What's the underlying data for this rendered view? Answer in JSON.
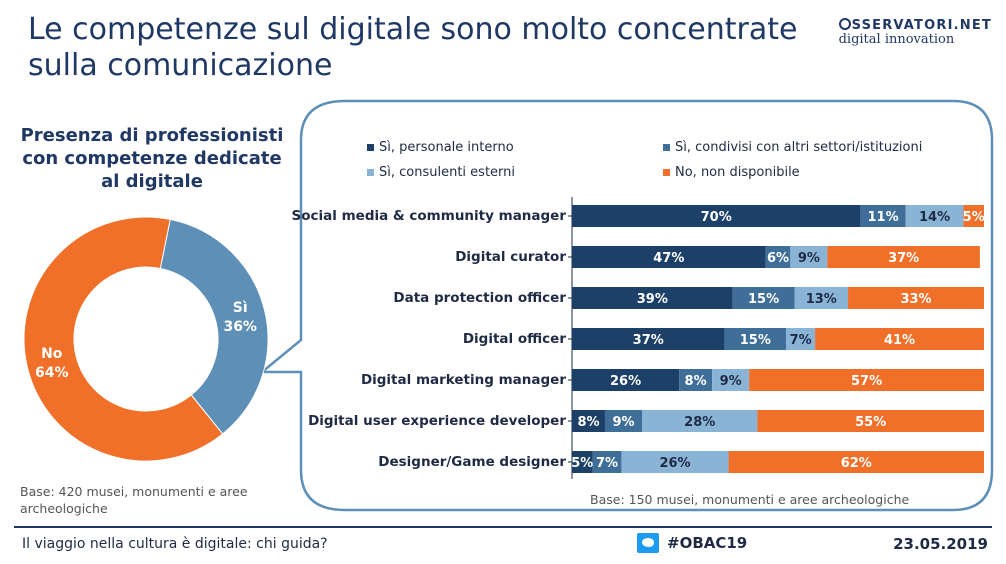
{
  "title": "Le competenze sul digitale sono molto concentrate sulla comunicazione",
  "logo": {
    "line1": "SSERVATORI.NET",
    "line2": "digital innovation"
  },
  "donut": {
    "title": "Presenza di professionisti con competenze dedicate al digitale",
    "base": "Base: 420 musei, monumenti e aree archeologiche",
    "colors": {
      "no": "#f07029",
      "si": "#5e8fb7"
    }
  },
  "bars": {
    "base": "Base: 150 musei, monumenti e aree archeologiche",
    "legend": [
      {
        "label": "Sì, personale interno",
        "color": "#1d4068"
      },
      {
        "label": "Sì, condivisi con altri settori/istituzioni",
        "color": "#3f6f99"
      },
      {
        "label": "Sì, consulenti esterni",
        "color": "#8ab4d6"
      },
      {
        "label": "No, non disponibile",
        "color": "#f07029"
      }
    ]
  },
  "chart_data": [
    {
      "type": "pie",
      "title": "Presenza di professionisti con competenze dedicate al digitale",
      "donut": true,
      "slices": [
        {
          "label": "No",
          "value": 64,
          "display": "64%"
        },
        {
          "label": "Sì",
          "value": 36,
          "display": "36%"
        }
      ]
    },
    {
      "type": "bar",
      "orientation": "horizontal",
      "stacked": true,
      "xlim": [
        0,
        100
      ],
      "categories": [
        "Social media & community manager",
        "Digital curator",
        "Data protection officer",
        "Digital officer",
        "Digital marketing manager",
        "Digital user experience developer",
        "Designer/Game designer"
      ],
      "series": [
        {
          "name": "Sì, personale interno",
          "values": [
            70,
            47,
            39,
            37,
            26,
            8,
            5
          ]
        },
        {
          "name": "Sì, condivisi con altri settori/istituzioni",
          "values": [
            11,
            6,
            15,
            15,
            8,
            9,
            7
          ]
        },
        {
          "name": "Sì, consulenti esterni",
          "values": [
            14,
            9,
            13,
            7,
            9,
            28,
            26
          ]
        },
        {
          "name": "No, non disponibile",
          "values": [
            5,
            37,
            33,
            41,
            57,
            55,
            62
          ]
        }
      ]
    }
  ],
  "footer": {
    "left": "Il viaggio nella cultura è digitale: chi guida?",
    "hashtag": "#OBAC19",
    "date": "23.05.2019"
  }
}
